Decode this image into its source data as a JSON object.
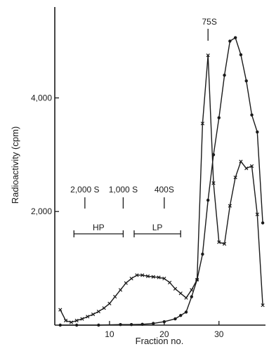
{
  "chart_data": {
    "type": "line",
    "xlabel": "Fraction no.",
    "ylabel": "Radioactivity (cpm)",
    "xlim": [
      0,
      38.5
    ],
    "ylim": [
      0,
      5600
    ],
    "x_ticks": [
      10,
      20,
      30
    ],
    "x_tick_labels": [
      "10",
      "20",
      "30"
    ],
    "y_ticks": [
      2000,
      4000
    ],
    "y_tick_labels": [
      "2,000",
      "4,000"
    ],
    "grid": false,
    "series": [
      {
        "marker": "cross",
        "points": [
          [
            1,
            270
          ],
          [
            2,
            80
          ],
          [
            3,
            50
          ],
          [
            4,
            80
          ],
          [
            5,
            110
          ],
          [
            6,
            150
          ],
          [
            7,
            190
          ],
          [
            8,
            240
          ],
          [
            9,
            300
          ],
          [
            10,
            380
          ],
          [
            11,
            500
          ],
          [
            12,
            620
          ],
          [
            13,
            740
          ],
          [
            14,
            820
          ],
          [
            15,
            880
          ],
          [
            16,
            880
          ],
          [
            17,
            860
          ],
          [
            18,
            850
          ],
          [
            19,
            840
          ],
          [
            20,
            820
          ],
          [
            21,
            750
          ],
          [
            22,
            640
          ],
          [
            23,
            560
          ],
          [
            24,
            480
          ],
          [
            25,
            620
          ],
          [
            26,
            800
          ],
          [
            27,
            3550
          ],
          [
            28,
            4750
          ],
          [
            29,
            2500
          ],
          [
            30,
            1460
          ],
          [
            31,
            1430
          ],
          [
            32,
            2100
          ],
          [
            33,
            2600
          ],
          [
            34,
            2880
          ],
          [
            35,
            2760
          ],
          [
            36,
            2800
          ],
          [
            37,
            1950
          ],
          [
            38,
            350
          ]
        ]
      },
      {
        "marker": "dot",
        "points": [
          [
            1,
            0
          ],
          [
            4,
            0
          ],
          [
            8,
            0
          ],
          [
            12,
            10
          ],
          [
            14,
            10
          ],
          [
            16,
            15
          ],
          [
            18,
            30
          ],
          [
            20,
            60
          ],
          [
            22,
            110
          ],
          [
            23,
            170
          ],
          [
            24,
            230
          ],
          [
            25,
            500
          ],
          [
            26,
            800
          ],
          [
            27,
            1250
          ],
          [
            28,
            2200
          ],
          [
            29,
            3000
          ],
          [
            30,
            3650
          ],
          [
            31,
            4400
          ],
          [
            32,
            5000
          ],
          [
            33,
            5060
          ],
          [
            34,
            4760
          ],
          [
            35,
            4300
          ],
          [
            36,
            3700
          ],
          [
            37,
            3400
          ],
          [
            38,
            1800
          ]
        ]
      }
    ],
    "markers": [
      {
        "label": "2,000 S",
        "x": 5.5
      },
      {
        "label": "1,000 S",
        "x": 12.5
      },
      {
        "label": "400S",
        "x": 20
      }
    ],
    "peak_label": {
      "label": "75S",
      "x": 28
    },
    "ranges": [
      {
        "label": "HP",
        "x1": 3.5,
        "x2": 12.5
      },
      {
        "label": "LP",
        "x1": 14.5,
        "x2": 23
      }
    ]
  }
}
